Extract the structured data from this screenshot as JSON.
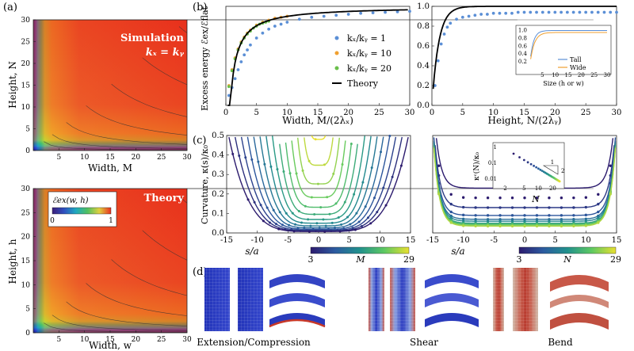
{
  "figure": {
    "panels": {
      "a": {
        "label": "(a)",
        "top": {
          "title1": "Simulation",
          "title2": "kₓ = kᵧ",
          "xlabel": "Width, M",
          "ylabel": "Height, N",
          "xticks": [
            5,
            10,
            15,
            20,
            25,
            30
          ],
          "yticks": [
            0,
            5,
            10,
            15,
            20,
            25,
            30
          ]
        },
        "bottom": {
          "title1": "Theory",
          "xlabel": "Width, w",
          "ylabel": "Height, h",
          "xticks": [
            5,
            10,
            15,
            20,
            25,
            30
          ],
          "yticks": [
            0,
            5,
            10,
            15,
            20,
            25,
            30
          ],
          "colorbar_label": "ℰex(w, h)",
          "colorbar_min": "0",
          "colorbar_max": "1"
        }
      },
      "b": {
        "label": "(b)"
      },
      "c": {
        "label": "(c)"
      },
      "d": {
        "label": "(d)",
        "captions": [
          "Extension/Compression",
          "Shear",
          "Bend"
        ]
      }
    }
  },
  "chart_data": [
    {
      "id": "b-left",
      "type": "scatter",
      "xlabel": "Width, M/(2λₓ)",
      "ylabel": "Excess energy ℰex/ℰflat",
      "xlim": [
        0,
        30
      ],
      "ylim": [
        0,
        1
      ],
      "xticks": [
        0,
        5,
        10,
        15,
        20,
        25,
        30
      ],
      "legend": [
        "kₓ/kᵧ = 1",
        "kₓ/kᵧ = 10",
        "kₓ/kᵧ = 20",
        "Theory"
      ],
      "series": [
        {
          "name": "kx/ky = 1",
          "color": "#5b8fd6",
          "x": [
            0.5,
            1,
            1.5,
            2,
            2.5,
            3,
            3.5,
            4,
            5,
            6,
            7,
            8,
            9,
            10,
            12,
            14,
            16,
            18,
            20,
            22,
            24,
            26,
            28,
            30
          ],
          "y": [
            0.1,
            0.18,
            0.27,
            0.36,
            0.44,
            0.51,
            0.56,
            0.61,
            0.68,
            0.73,
            0.77,
            0.8,
            0.82,
            0.84,
            0.87,
            0.89,
            0.9,
            0.91,
            0.92,
            0.93,
            0.935,
            0.94,
            0.945,
            0.95
          ]
        },
        {
          "name": "kx/ky = 10",
          "color": "#f0a030",
          "x": [
            0.5,
            1,
            1.5,
            2,
            2.5,
            3,
            3.5,
            4,
            5,
            6,
            7,
            8,
            9,
            10
          ],
          "y": [
            0.2,
            0.36,
            0.48,
            0.57,
            0.64,
            0.69,
            0.73,
            0.76,
            0.81,
            0.84,
            0.86,
            0.88,
            0.89,
            0.9
          ]
        },
        {
          "name": "kx/ky = 20",
          "color": "#6abf4b",
          "x": [
            0.5,
            1,
            1.5,
            2,
            2.5,
            3,
            3.5,
            4,
            4.5,
            5,
            5.5,
            6,
            6.5,
            7
          ],
          "y": [
            0.19,
            0.35,
            0.47,
            0.56,
            0.63,
            0.68,
            0.72,
            0.75,
            0.78,
            0.8,
            0.82,
            0.83,
            0.84,
            0.85
          ]
        },
        {
          "name": "Theory",
          "color": "#000000",
          "line": true
        }
      ]
    },
    {
      "id": "b-right",
      "type": "scatter",
      "xlabel": "Height, N/(2λᵧ)",
      "xlim": [
        0,
        30
      ],
      "ylim": [
        0,
        1
      ],
      "xticks": [
        0,
        5,
        10,
        15,
        20,
        25,
        30
      ],
      "yticks": [
        0.0,
        0.2,
        0.4,
        0.6,
        0.8,
        1.0
      ],
      "series": [
        {
          "name": "simulation",
          "color": "#5b8fd6",
          "x": [
            0.5,
            1,
            1.5,
            2,
            2.5,
            3,
            4,
            5,
            6,
            7,
            8,
            9,
            10,
            11,
            12,
            13,
            14,
            15,
            16,
            17,
            18,
            19,
            20,
            21,
            22,
            23,
            24,
            25,
            26,
            27,
            28,
            29,
            30
          ],
          "y": [
            0.2,
            0.45,
            0.62,
            0.72,
            0.79,
            0.83,
            0.87,
            0.89,
            0.9,
            0.91,
            0.92,
            0.92,
            0.93,
            0.93,
            0.93,
            0.93,
            0.94,
            0.94,
            0.94,
            0.94,
            0.94,
            0.94,
            0.94,
            0.94,
            0.94,
            0.94,
            0.94,
            0.94,
            0.94,
            0.94,
            0.94,
            0.94,
            0.94
          ]
        },
        {
          "name": "Theory",
          "color": "#000000",
          "line": true
        }
      ],
      "inset": {
        "xlabel": "Size (h or w)",
        "xticks": [
          5,
          10,
          15,
          20,
          25,
          30
        ],
        "yticks": [
          0.2,
          0.4,
          0.6,
          0.8,
          1.0
        ],
        "legend": [
          "Tall",
          "Wide"
        ]
      }
    },
    {
      "id": "c-left",
      "type": "line",
      "xlabel": "s/a",
      "ylabel": "Curvature, κ(s)/κ₀",
      "xlim": [
        -15,
        15
      ],
      "ylim": [
        0,
        0.5
      ],
      "xticks": [
        -15,
        -10,
        -5,
        0,
        5,
        10,
        15
      ],
      "yticks": [
        0.0,
        0.1,
        0.2,
        0.3,
        0.4,
        0.5
      ],
      "colorbar_min": "3",
      "colorbar_max": "29",
      "colorbar_label": "M"
    },
    {
      "id": "c-right",
      "type": "line",
      "xlabel": "s/a",
      "xlim": [
        -15,
        15
      ],
      "ylim": [
        0,
        0.5
      ],
      "xticks": [
        -15,
        -10,
        -5,
        0,
        5,
        10,
        15
      ],
      "colorbar_min": "3",
      "colorbar_max": "29",
      "colorbar_label": "N",
      "inset": {
        "xlabel": "N",
        "ylabel": "κᶜ(N)/κ₀",
        "xticks": [
          2,
          5,
          10,
          20
        ],
        "yticks": [
          "1",
          "0.1",
          "0.01"
        ],
        "slope_top": "1",
        "slope_side": "2"
      }
    }
  ]
}
